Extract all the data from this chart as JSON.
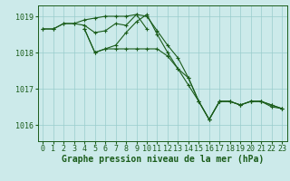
{
  "background_color": "#cceaea",
  "grid_color": "#99cccc",
  "line_color": "#1a5c1a",
  "xlabel": "Graphe pression niveau de la mer (hPa)",
  "xlabel_fontsize": 7,
  "tick_fontsize": 6,
  "ylim": [
    1015.55,
    1019.3
  ],
  "xlim": [
    -0.5,
    23.5
  ],
  "yticks": [
    1016,
    1017,
    1018,
    1019
  ],
  "xticks": [
    0,
    1,
    2,
    3,
    4,
    5,
    6,
    7,
    8,
    9,
    10,
    11,
    12,
    13,
    14,
    15,
    16,
    17,
    18,
    19,
    20,
    21,
    22,
    23
  ],
  "series": [
    {
      "x": [
        0,
        1,
        2,
        3,
        4,
        5,
        6,
        7,
        8,
        9,
        10,
        11,
        12,
        13,
        14,
        15,
        16,
        17,
        18,
        19,
        20,
        21,
        22,
        23
      ],
      "y": [
        1018.65,
        1018.65,
        1018.8,
        1018.8,
        1018.75,
        1018.55,
        1018.6,
        1018.8,
        1018.75,
        1019.05,
        1019.0,
        1018.6,
        1018.2,
        1017.85,
        1017.3,
        1016.65,
        1016.15,
        1016.65,
        1016.65,
        1016.55,
        1016.65,
        1016.65,
        1016.55,
        1016.45
      ]
    },
    {
      "x": [
        0,
        1,
        2,
        3,
        4,
        5,
        6,
        7,
        8,
        9,
        10
      ],
      "y": [
        1018.65,
        1018.65,
        1018.8,
        1018.8,
        1018.9,
        1018.95,
        1019.0,
        1019.0,
        1019.0,
        1019.05,
        1018.65
      ]
    },
    {
      "x": [
        4,
        5,
        6,
        7,
        8,
        9,
        10,
        11,
        12,
        13,
        14,
        15,
        16,
        17,
        18,
        19,
        20,
        21,
        22,
        23
      ],
      "y": [
        1018.65,
        1018.0,
        1018.1,
        1018.2,
        1018.55,
        1018.85,
        1019.05,
        1018.5,
        1018.0,
        1017.55,
        1017.3,
        1016.65,
        1016.15,
        1016.65,
        1016.65,
        1016.55,
        1016.65,
        1016.65,
        1016.55,
        1016.45
      ]
    },
    {
      "x": [
        4,
        5,
        6,
        7,
        8,
        9,
        10,
        11,
        12,
        13,
        14,
        15,
        16,
        17,
        18,
        19,
        20,
        21,
        22,
        23
      ],
      "y": [
        1018.65,
        1018.0,
        1018.1,
        1018.1,
        1018.1,
        1018.1,
        1018.1,
        1018.1,
        1017.9,
        1017.55,
        1017.1,
        1016.65,
        1016.15,
        1016.65,
        1016.65,
        1016.55,
        1016.65,
        1016.65,
        1016.5,
        1016.45
      ]
    }
  ]
}
